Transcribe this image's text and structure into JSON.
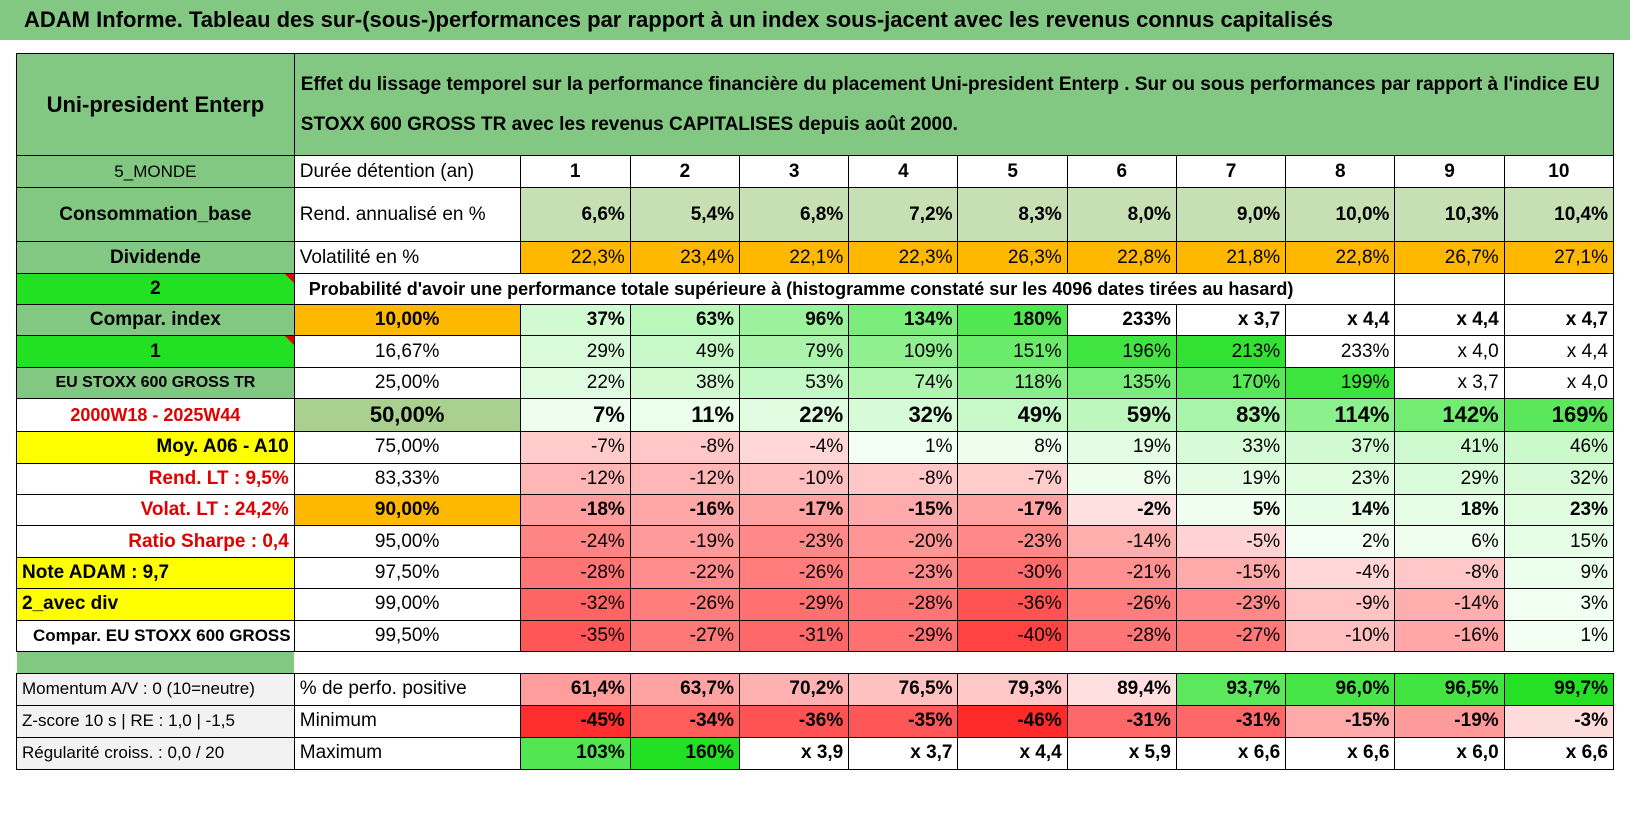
{
  "title": "ADAM Informe. Tableau des sur-(sous-)performances par rapport à un index sous-jacent avec les revenus connus capitalisés",
  "header": {
    "company": "Uni-president Enterp",
    "description": "Effet du lissage temporel sur la performance financière du placement Uni-president Enterp . Sur ou sous performances par rapport à l'indice EU STOXX 600 GROSS TR avec les revenus CAPITALISES depuis août 2000."
  },
  "left_labels": {
    "region": "5_MONDE",
    "sector": "Consommation_base",
    "dividend": "Dividende",
    "num2": "2",
    "compar": "Compar. index",
    "num1": "1",
    "index_name": "EU STOXX 600 GROSS TR",
    "period": "2000W18 - 2025W44",
    "moy": "Moy. A06 - A10",
    "rend_lt": "Rend. LT :    9,5%",
    "volat_lt": "Volat. LT :    24,2%",
    "sharpe": "Ratio Sharpe :    0,4",
    "note": "Note ADAM : 9,7",
    "avec_div": "2_avec div",
    "compar_index": "Compar. EU STOXX 600 GROSS TR",
    "momentum": "Momentum A/V : 0 (10=neutre)",
    "zscore": "Z-score 10 s | RE : 1,0 | -1,5",
    "regularite": "Régularité croiss. : 0,0 / 20"
  },
  "row_labels": {
    "duree": "Durée détention (an)",
    "rend": "Rend. annualisé en %",
    "vol": "Volatilité en %",
    "proba": "Probabilité d'avoir une performance totale supérieure à (histogramme constaté sur les 4096 dates tirées au hasard)",
    "perfo_pos": "% de perfo. positive",
    "minimum": "Minimum",
    "maximum": "Maximum"
  },
  "chart_data": {
    "type": "table",
    "years": [
      "1",
      "2",
      "3",
      "4",
      "5",
      "6",
      "7",
      "8",
      "9",
      "10"
    ],
    "rend_annualise": [
      "6,6%",
      "5,4%",
      "6,8%",
      "7,2%",
      "8,3%",
      "8,0%",
      "9,0%",
      "10,0%",
      "10,3%",
      "10,4%"
    ],
    "volatilite": [
      "22,3%",
      "23,4%",
      "22,1%",
      "22,3%",
      "26,3%",
      "22,8%",
      "21,8%",
      "22,8%",
      "26,7%",
      "27,1%"
    ],
    "percentiles": [
      {
        "p": "10,00%",
        "values": [
          "37%",
          "63%",
          "96%",
          "134%",
          "180%",
          "233%",
          "x 3,7",
          "x 4,4",
          "x 4,4",
          "x 4,7"
        ]
      },
      {
        "p": "16,67%",
        "values": [
          "29%",
          "49%",
          "79%",
          "109%",
          "151%",
          "196%",
          "213%",
          "233%",
          "x 4,0",
          "x 4,4"
        ]
      },
      {
        "p": "25,00%",
        "values": [
          "22%",
          "38%",
          "53%",
          "74%",
          "118%",
          "135%",
          "170%",
          "199%",
          "x 3,7",
          "x 4,0"
        ]
      },
      {
        "p": "50,00%",
        "values": [
          "7%",
          "11%",
          "22%",
          "32%",
          "49%",
          "59%",
          "83%",
          "114%",
          "142%",
          "169%"
        ]
      },
      {
        "p": "75,00%",
        "values": [
          "-7%",
          "-8%",
          "-4%",
          "1%",
          "8%",
          "19%",
          "33%",
          "37%",
          "41%",
          "46%"
        ]
      },
      {
        "p": "83,33%",
        "values": [
          "-12%",
          "-12%",
          "-10%",
          "-8%",
          "-7%",
          "8%",
          "19%",
          "23%",
          "29%",
          "32%"
        ]
      },
      {
        "p": "90,00%",
        "values": [
          "-18%",
          "-16%",
          "-17%",
          "-15%",
          "-17%",
          "-2%",
          "5%",
          "14%",
          "18%",
          "23%"
        ]
      },
      {
        "p": "95,00%",
        "values": [
          "-24%",
          "-19%",
          "-23%",
          "-20%",
          "-23%",
          "-14%",
          "-5%",
          "2%",
          "6%",
          "15%"
        ]
      },
      {
        "p": "97,50%",
        "values": [
          "-28%",
          "-22%",
          "-26%",
          "-23%",
          "-30%",
          "-21%",
          "-15%",
          "-4%",
          "-8%",
          "9%"
        ]
      },
      {
        "p": "99,00%",
        "values": [
          "-32%",
          "-26%",
          "-29%",
          "-28%",
          "-36%",
          "-26%",
          "-23%",
          "-9%",
          "-14%",
          "3%"
        ]
      },
      {
        "p": "99,50%",
        "values": [
          "-35%",
          "-27%",
          "-31%",
          "-29%",
          "-40%",
          "-28%",
          "-27%",
          "-10%",
          "-16%",
          "1%"
        ]
      }
    ],
    "perfo_positive": [
      "61,4%",
      "63,7%",
      "70,2%",
      "76,5%",
      "79,3%",
      "89,4%",
      "93,7%",
      "96,0%",
      "96,5%",
      "99,7%"
    ],
    "minimum": [
      "-45%",
      "-34%",
      "-36%",
      "-35%",
      "-46%",
      "-31%",
      "-31%",
      "-15%",
      "-19%",
      "-3%"
    ],
    "maximum": [
      "103%",
      "160%",
      "x 3,9",
      "x 3,7",
      "x 4,4",
      "x 5,9",
      "x 6,6",
      "x 6,6",
      "x 6,0",
      "x 6,6"
    ]
  },
  "colors": {
    "header_green": "#82c882",
    "bright_green": "#22e022",
    "orange": "#ffb800",
    "yellow": "#ffff00",
    "red_text": "#e00000"
  }
}
